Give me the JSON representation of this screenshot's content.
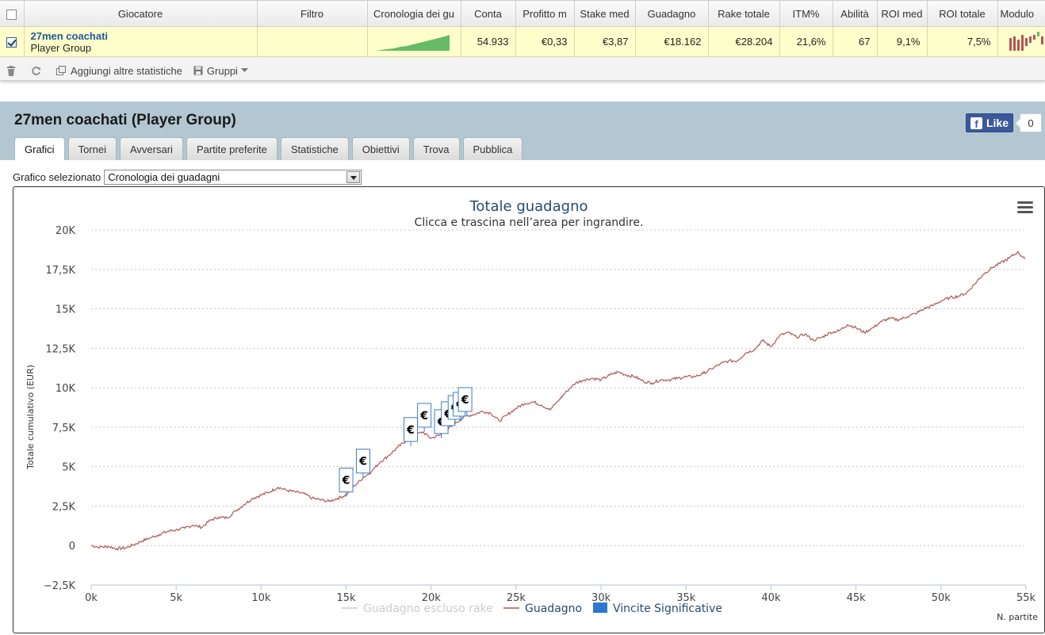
{
  "table": {
    "headers": [
      "Giocatore",
      "Filtro",
      "Cronologia dei gu",
      "Conta",
      "Profitto m",
      "Stake med",
      "Guadagno",
      "Rake totale",
      "ITM%",
      "Abilità",
      "ROI med",
      "ROI totale",
      "Modulo"
    ],
    "row": {
      "player_name": "27men coachati",
      "player_type": "Player Group",
      "filter": "",
      "conta": "54.933",
      "profitto_medio": "€0,33",
      "stake_medio": "€3,87",
      "guadagno": "€18.162",
      "rake_totale": "€28.204",
      "itm": "21,6%",
      "abilita": "67",
      "roi_medio": "9,1%",
      "roi_totale": "7,5%"
    }
  },
  "toolbar": {
    "add_stats_label": "Aggiungi altre statistiche",
    "groups_label": "Gruppi"
  },
  "header": {
    "title": "27men coachati (Player Group)",
    "fb_like_label": "Like",
    "fb_like_count": "0"
  },
  "tabs": [
    {
      "label": "Grafici",
      "active": true
    },
    {
      "label": "Tornei",
      "active": false
    },
    {
      "label": "Avversari",
      "active": false
    },
    {
      "label": "Partite preferite",
      "active": false
    },
    {
      "label": "Statistiche",
      "active": false
    },
    {
      "label": "Obiettivi",
      "active": false
    },
    {
      "label": "Trova",
      "active": false
    },
    {
      "label": "Pubblica",
      "active": false
    }
  ],
  "selector": {
    "label": "Grafico selezionato",
    "value": "Cronologia dei guadagni"
  },
  "colors": {
    "line": "#b05656",
    "flag_border": "#3d7dc8",
    "legend_disabled": "#cccccc",
    "legend_vincite": "#2e77d0",
    "sparkline": "#66bb66"
  },
  "chart_data": {
    "type": "line",
    "title": "Totale guadagno",
    "subtitle": "Clicca e trascina nell’area per ingrandire.",
    "ylabel": "Totale cumulativo (EUR)",
    "xlabel": "N. partite",
    "xlim": [
      0,
      55000
    ],
    "ylim": [
      -2500,
      20000
    ],
    "x_ticks": [
      "0k",
      "5k",
      "10k",
      "15k",
      "20k",
      "25k",
      "30k",
      "35k",
      "40k",
      "45k",
      "50k",
      "55k"
    ],
    "y_ticks": [
      "−2,5K",
      "0",
      "2,5K",
      "5K",
      "7,5K",
      "10K",
      "12,5K",
      "15K",
      "17,5K",
      "20K"
    ],
    "grid": true,
    "legend": [
      {
        "name": "Guadagno escluso rake",
        "enabled": false
      },
      {
        "name": "Guadagno",
        "enabled": true
      },
      {
        "name": "Vincite Significative",
        "enabled": true
      }
    ],
    "series": [
      {
        "name": "Guadagno",
        "x": [
          0,
          500,
          1000,
          1500,
          2000,
          2500,
          3000,
          3500,
          4000,
          4500,
          5000,
          5500,
          6000,
          6500,
          7000,
          7500,
          8000,
          8500,
          9000,
          9500,
          10000,
          10500,
          11000,
          11500,
          12000,
          12500,
          13000,
          13500,
          14000,
          14500,
          15000,
          15500,
          16000,
          16500,
          17000,
          17500,
          18000,
          18500,
          19000,
          19500,
          20000,
          20500,
          21000,
          21500,
          22000,
          22500,
          23000,
          23500,
          24000,
          24500,
          25000,
          25500,
          26000,
          26500,
          27000,
          27500,
          28000,
          28500,
          29000,
          29500,
          30000,
          30500,
          31000,
          31500,
          32000,
          32500,
          33000,
          33500,
          34000,
          34500,
          35000,
          35500,
          36000,
          36500,
          37000,
          37500,
          38000,
          38500,
          39000,
          39500,
          40000,
          40500,
          41000,
          41500,
          42000,
          42500,
          43000,
          43500,
          44000,
          44500,
          45000,
          45500,
          46000,
          46500,
          47000,
          47500,
          48000,
          48500,
          49000,
          49500,
          50000,
          50500,
          51000,
          51500,
          52000,
          52500,
          53000,
          53500,
          54000,
          54500,
          54933
        ],
        "values": [
          0,
          -100,
          -50,
          -200,
          -150,
          50,
          300,
          500,
          700,
          900,
          1000,
          1100,
          1300,
          1150,
          1600,
          1800,
          1750,
          2200,
          2600,
          3000,
          3200,
          3400,
          3700,
          3500,
          3400,
          3300,
          3000,
          2900,
          2800,
          3000,
          3200,
          3800,
          4300,
          4700,
          5300,
          5700,
          6200,
          6600,
          7000,
          7200,
          6800,
          7000,
          7400,
          7800,
          8200,
          8300,
          8500,
          8400,
          7900,
          8300,
          8700,
          9000,
          9100,
          8900,
          8600,
          9200,
          9800,
          10300,
          10500,
          10600,
          10500,
          10800,
          11000,
          10800,
          10700,
          10400,
          10300,
          10500,
          10500,
          10600,
          10700,
          10700,
          10900,
          11200,
          11500,
          11700,
          11700,
          12200,
          12400,
          13000,
          12600,
          13300,
          13500,
          13200,
          13400,
          13000,
          13200,
          13500,
          13600,
          14000,
          13800,
          13500,
          13800,
          14200,
          14400,
          14300,
          14500,
          14700,
          15000,
          15200,
          15500,
          15700,
          15800,
          16000,
          16600,
          17200,
          17600,
          17900,
          18200,
          18600,
          18162
        ]
      }
    ],
    "flags": [
      {
        "x": 15000,
        "y": 3100,
        "label": "€"
      },
      {
        "x": 16000,
        "y": 4300,
        "label": "€"
      },
      {
        "x": 18800,
        "y": 6300,
        "label": "€"
      },
      {
        "x": 19600,
        "y": 7200,
        "label": "€"
      },
      {
        "x": 20600,
        "y": 6800,
        "label": "€"
      },
      {
        "x": 21000,
        "y": 7300,
        "label": "€"
      },
      {
        "x": 21400,
        "y": 7700,
        "label": "€"
      },
      {
        "x": 21700,
        "y": 7900,
        "label": "€"
      },
      {
        "x": 22000,
        "y": 8200,
        "label": "€"
      }
    ]
  }
}
